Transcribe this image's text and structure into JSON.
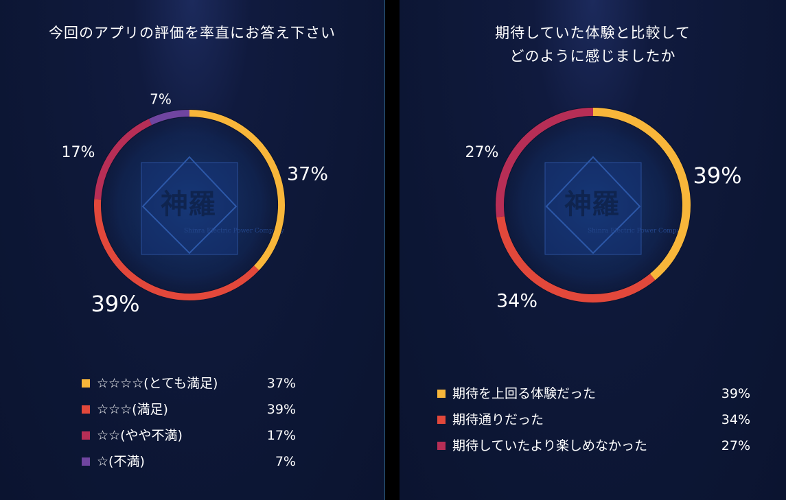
{
  "chart_data": [
    {
      "type": "pie",
      "title": "今回のアプリの評価を率直にお答え下さい",
      "categories": [
        "☆☆☆☆(とても満足)",
        "☆☆☆(満足)",
        "☆☆(やや不満)",
        "☆(不満)"
      ],
      "values": [
        37,
        39,
        17,
        7
      ],
      "value_labels": [
        "37%",
        "39%",
        "17%",
        "7%"
      ],
      "colors": [
        "#f8b63a",
        "#e2483b",
        "#b72e56",
        "#7045a0"
      ],
      "legend": "bottom"
    },
    {
      "type": "pie",
      "title": "期待していた体験と比較して\nどのように感じましたか",
      "categories": [
        "期待を上回る体験だった",
        "期待通りだった",
        "期待していたより楽しめなかった"
      ],
      "values": [
        39,
        34,
        27
      ],
      "value_labels": [
        "39%",
        "34%",
        "27%"
      ],
      "colors": [
        "#f8b63a",
        "#e2483b",
        "#b72e56"
      ],
      "legend": "bottom"
    }
  ],
  "emblem": {
    "name": "shinra-logo",
    "text": "神羅",
    "subtext": "Shinra Electric Power Company"
  },
  "colors": {
    "background": "#0d1736",
    "ring_track": "#0b1430"
  }
}
